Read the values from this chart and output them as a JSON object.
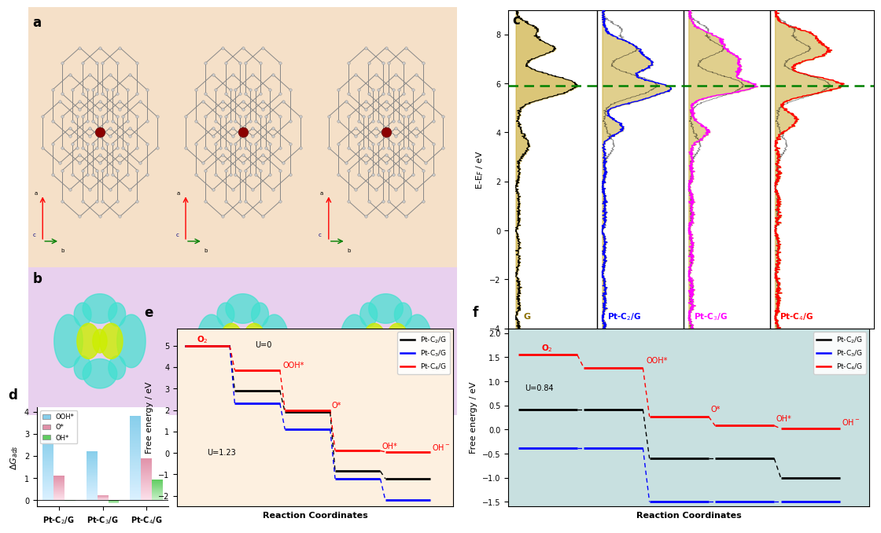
{
  "panel_a_bg": "#f5e0c8",
  "panel_b_bg": "#e8d0ee",
  "panel_c_bg": "#ffffff",
  "panel_d_bg": "#ffffff",
  "panel_e_bg": "#fdf0e0",
  "panel_f_bg": "#c8e0e0",
  "label_fontsize": 12,
  "axis_fontsize": 8,
  "tick_fontsize": 7,
  "pdos_ylim": [
    -4,
    9
  ],
  "bar_categories": [
    "Pt-C₂/G",
    "Pt-C₃/G",
    "Pt-C₄/G"
  ],
  "bar_ooh": [
    2.8,
    2.2,
    3.8
  ],
  "bar_o": [
    1.1,
    0.22,
    1.9
  ],
  "bar_oh": [
    -0.05,
    -0.15,
    0.92
  ],
  "bar_ylim": [
    -0.3,
    4.2
  ],
  "bar_yticks": [
    0,
    1,
    2,
    3,
    4
  ],
  "e_steps": [
    "O2",
    "OOH*",
    "O*",
    "OH*",
    "OH-"
  ],
  "e_black": [
    5.0,
    2.9,
    1.9,
    -0.85,
    -1.2
  ],
  "e_blue": [
    5.0,
    2.3,
    1.1,
    -1.2,
    -2.2
  ],
  "e_red": [
    5.0,
    3.85,
    2.0,
    0.1,
    0.05
  ],
  "e_ylim": [
    -2.5,
    5.8
  ],
  "e_yticks": [
    -2,
    -1,
    0,
    1,
    2,
    3,
    4,
    5
  ],
  "f_steps": [
    "O2",
    "OOH*",
    "O*",
    "OH*",
    "OH-"
  ],
  "f_black": [
    0.42,
    0.42,
    -0.6,
    -0.6,
    -1.0
  ],
  "f_blue": [
    -0.38,
    -0.38,
    -1.5,
    -1.5,
    -1.5
  ],
  "f_red": [
    1.55,
    1.28,
    0.27,
    0.08,
    0.02
  ],
  "f_o2_black": 0.42,
  "f_o2_blue": -0.38,
  "f_o2_red": 1.55,
  "f_ylim": [
    -1.6,
    2.1
  ],
  "f_yticks": [
    -1.5,
    -1.0,
    -0.5,
    0.0,
    0.5,
    1.0,
    1.5,
    2.0
  ]
}
